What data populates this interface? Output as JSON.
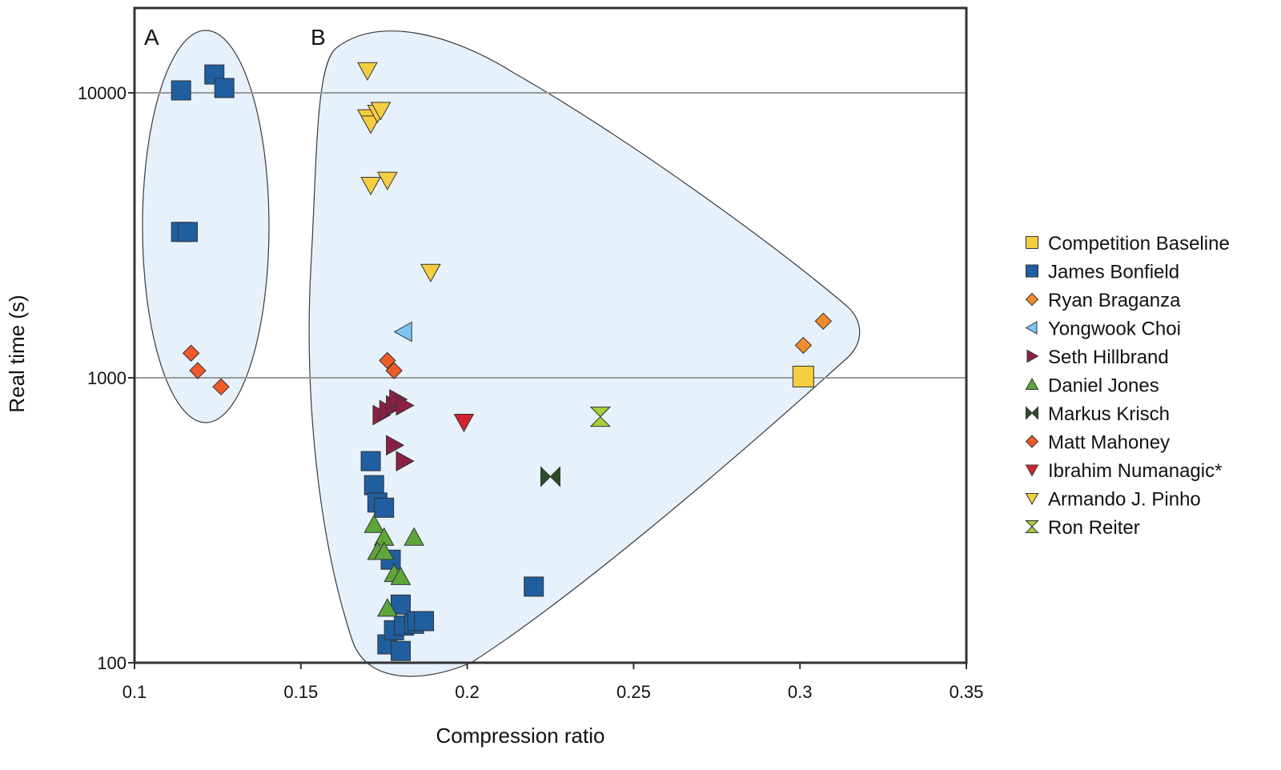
{
  "chart_data": {
    "type": "scatter",
    "xlabel": "Compression ratio",
    "ylabel": "Real time (s)",
    "xlim": [
      0.1,
      0.35
    ],
    "ylim": [
      100,
      20000
    ],
    "yscale": "log",
    "xticks": [
      "0.1",
      "0.15",
      "0.2",
      "0.25",
      "0.3",
      "0.35"
    ],
    "xtick_values": [
      0.1,
      0.15,
      0.2,
      0.25,
      0.3,
      0.35
    ],
    "yticks": [
      "100",
      "1000",
      "10000"
    ],
    "ytick_values": [
      100,
      1000,
      10000
    ],
    "grid": "horizontal major lines",
    "legend_position": "right",
    "groups": [
      {
        "label": "A"
      },
      {
        "label": "B"
      }
    ],
    "series": [
      {
        "name": "Competition Baseline",
        "marker": "square-large",
        "color": "#f5cd41",
        "points": [
          [
            0.301,
            1010
          ]
        ]
      },
      {
        "name": "James Bonfield",
        "marker": "square",
        "color": "#1f5fa0",
        "points": [
          [
            0.114,
            10200
          ],
          [
            0.124,
            11600
          ],
          [
            0.127,
            10400
          ],
          [
            0.114,
            3250
          ],
          [
            0.116,
            3250
          ],
          [
            0.171,
            510
          ],
          [
            0.172,
            420
          ],
          [
            0.173,
            365
          ],
          [
            0.175,
            350
          ],
          [
            0.177,
            230
          ],
          [
            0.18,
            160
          ],
          [
            0.22,
            185
          ],
          [
            0.176,
            116
          ],
          [
            0.178,
            130
          ],
          [
            0.18,
            110
          ],
          [
            0.181,
            135
          ],
          [
            0.184,
            137
          ],
          [
            0.185,
            140
          ],
          [
            0.187,
            140
          ]
        ]
      },
      {
        "name": "Ryan Braganza",
        "marker": "diamond",
        "color": "#f08c2a",
        "points": [
          [
            0.301,
            1300
          ],
          [
            0.307,
            1580
          ]
        ]
      },
      {
        "name": "Yongwook Choi",
        "marker": "triangle-left",
        "color": "#7ec4f2",
        "points": [
          [
            0.181,
            1450
          ]
        ]
      },
      {
        "name": "Seth Hillbrand",
        "marker": "triangle-right",
        "color": "#8c1f45",
        "points": [
          [
            0.174,
            740
          ],
          [
            0.176,
            770
          ],
          [
            0.178,
            800
          ],
          [
            0.179,
            840
          ],
          [
            0.181,
            800
          ],
          [
            0.178,
            580
          ],
          [
            0.181,
            510
          ]
        ]
      },
      {
        "name": "Daniel Jones",
        "marker": "triangle-up",
        "color": "#5ea63a",
        "points": [
          [
            0.172,
            305
          ],
          [
            0.175,
            275
          ],
          [
            0.184,
            275
          ],
          [
            0.173,
            245
          ],
          [
            0.175,
            245
          ],
          [
            0.178,
            205
          ],
          [
            0.18,
            200
          ],
          [
            0.176,
            155
          ]
        ]
      },
      {
        "name": "Markus Krisch",
        "marker": "bowtie",
        "color": "#2b4d2b",
        "points": [
          [
            0.225,
            450
          ]
        ]
      },
      {
        "name": "Matt Mahoney",
        "marker": "diamond",
        "color": "#f05a28",
        "points": [
          [
            0.117,
            1220
          ],
          [
            0.119,
            1060
          ],
          [
            0.126,
            930
          ],
          [
            0.176,
            1150
          ],
          [
            0.178,
            1060
          ]
        ]
      },
      {
        "name": "Ibrahim Numanagic*",
        "marker": "triangle-down",
        "color": "#d0232a",
        "points": [
          [
            0.199,
            700
          ]
        ]
      },
      {
        "name": "Armando J. Pinho",
        "marker": "triangle-down",
        "color": "#f5cd41",
        "points": [
          [
            0.17,
            12000
          ],
          [
            0.17,
            8200
          ],
          [
            0.171,
            7800
          ],
          [
            0.173,
            8500
          ],
          [
            0.174,
            8700
          ],
          [
            0.171,
            4750
          ],
          [
            0.176,
            4950
          ],
          [
            0.189,
            2350
          ]
        ]
      },
      {
        "name": "Ron Reiter",
        "marker": "hourglass",
        "color": "#a8cf3a",
        "points": [
          [
            0.24,
            730
          ]
        ]
      }
    ]
  }
}
